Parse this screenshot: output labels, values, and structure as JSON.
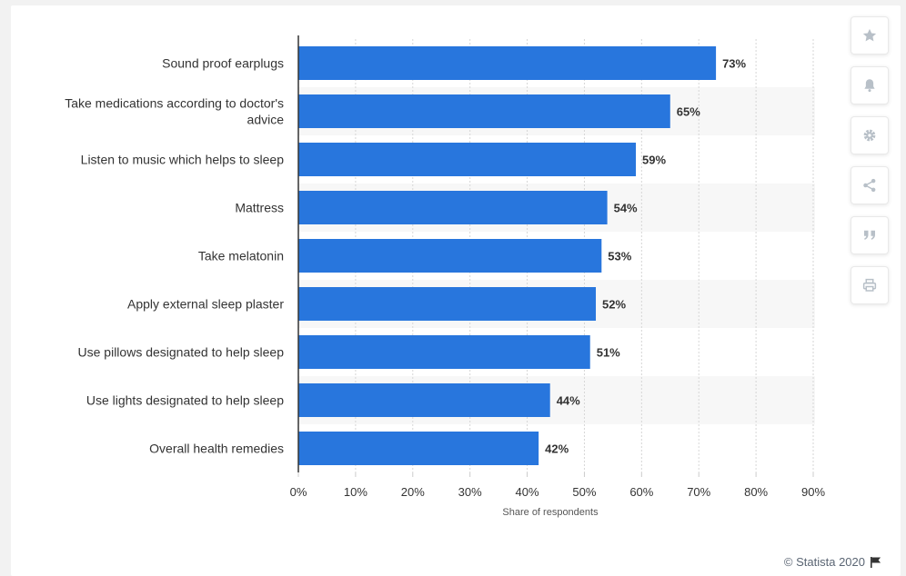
{
  "toolbar": {
    "icons": [
      "star-icon",
      "bell-icon",
      "gear-icon",
      "share-icon",
      "quote-icon",
      "print-icon"
    ],
    "icon_color": "#b8c0c8"
  },
  "footer": {
    "text": "© Statista 2020",
    "icon": "flag-icon"
  },
  "colors": {
    "bar": "#2876dd",
    "label": "#333333",
    "axis": "#333333",
    "grid": "#d6d6d6",
    "band": "#f7f7f7"
  },
  "chart_data": {
    "type": "bar",
    "orientation": "horizontal",
    "categories": [
      "Sound proof earplugs",
      "Take medications according to doctor's advice",
      "Listen to music which helps to sleep",
      "Mattress",
      "Take melatonin",
      "Apply external sleep plaster",
      "Use pillows designated to help sleep",
      "Use lights designated to help sleep",
      "Overall health remedies"
    ],
    "values": [
      73,
      65,
      59,
      54,
      53,
      52,
      51,
      44,
      42
    ],
    "value_labels": [
      "73%",
      "65%",
      "59%",
      "54%",
      "53%",
      "52%",
      "51%",
      "44%",
      "42%"
    ],
    "xlabel": "Share of respondents",
    "xlim": [
      0,
      90
    ],
    "xticks": [
      0,
      10,
      20,
      30,
      40,
      50,
      60,
      70,
      80,
      90
    ],
    "xtick_labels": [
      "0%",
      "10%",
      "20%",
      "30%",
      "40%",
      "50%",
      "60%",
      "70%",
      "80%",
      "90%"
    ],
    "grid": "vertical dashed",
    "legend": "none"
  }
}
